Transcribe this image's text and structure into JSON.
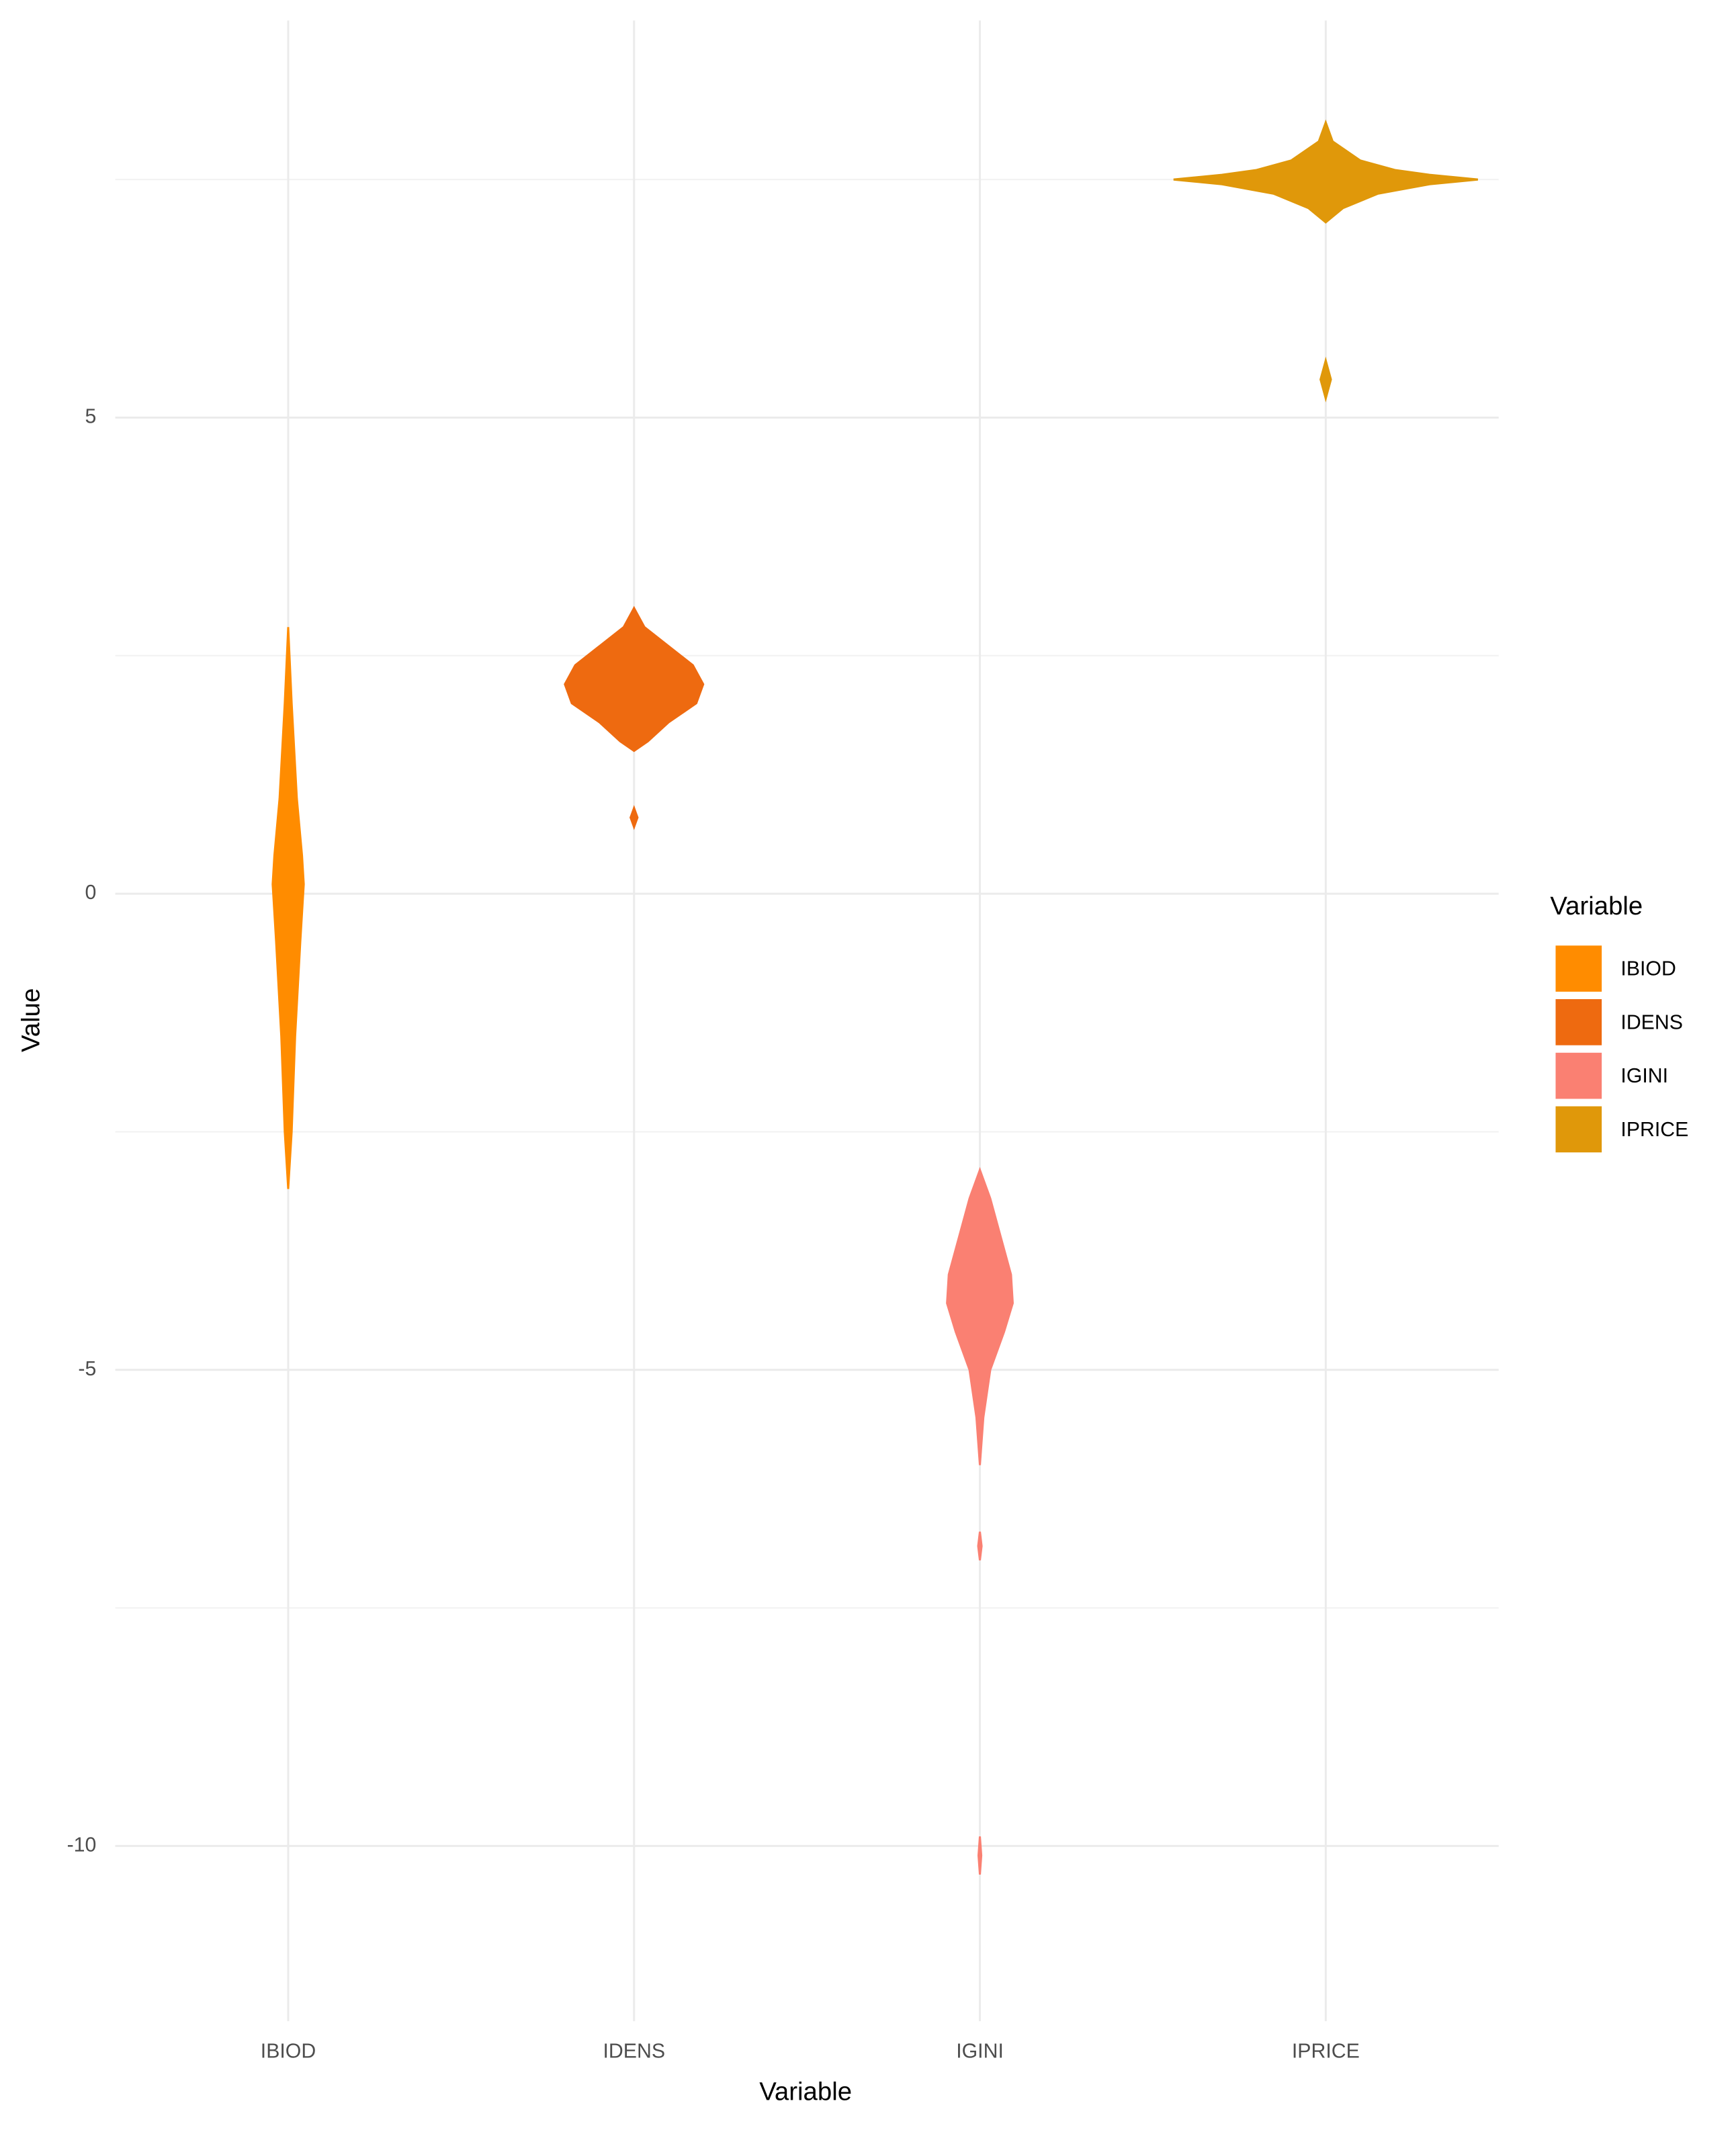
{
  "chart_data": {
    "type": "violin",
    "x_label": "Variable",
    "y_label": "Value",
    "legend_title": "Variable",
    "categories": [
      "IBIOD",
      "IDENS",
      "IGINI",
      "IPRICE"
    ],
    "ylim": [
      -11.84,
      9.17
    ],
    "yticks": [
      -10,
      -5,
      0,
      5
    ],
    "minor_yticks": [
      -7.5,
      -2.5,
      2.5,
      7.5
    ],
    "grid": true,
    "legend": "right",
    "series": [
      {
        "name": "IBIOD",
        "color": "#ff8c00",
        "y": [
          2.8,
          2.0,
          1.0,
          0.4,
          0.1,
          -0.5,
          -1.5,
          -2.5,
          -3.1
        ],
        "width": [
          0,
          0.01,
          0.025,
          0.04,
          0.045,
          0.035,
          0.02,
          0.01,
          0
        ]
      },
      {
        "name": "IDENS",
        "color": "#ee6a10",
        "y": [
          3.0,
          2.8,
          2.6,
          2.4,
          2.2,
          2.0,
          1.8,
          1.6,
          1.5,
          null,
          0.9,
          0.8,
          0.7
        ],
        "width": [
          0,
          0.03,
          0.1,
          0.17,
          0.2,
          0.18,
          0.1,
          0.04,
          0,
          null,
          0,
          0.01,
          0
        ]
      },
      {
        "name": "IGINI",
        "color": "#fa8072",
        "y": [
          -2.9,
          -3.2,
          -3.6,
          -4.0,
          -4.3,
          -4.6,
          -5.0,
          -5.5,
          -6.0,
          null,
          -6.7,
          -6.85,
          -7.0,
          null,
          -9.9,
          -10.1,
          -10.3
        ],
        "width": [
          0,
          0.03,
          0.06,
          0.09,
          0.095,
          0.07,
          0.03,
          0.01,
          0,
          null,
          0,
          0.005,
          0,
          null,
          0,
          0.004,
          0
        ]
      },
      {
        "name": "IPRICE",
        "color": "#e0980a",
        "y": [
          8.1,
          7.9,
          7.7,
          7.6,
          7.55,
          7.5,
          7.45,
          7.35,
          7.2,
          7.05,
          null,
          5.6,
          5.4,
          5.2
        ],
        "width": [
          0,
          0.02,
          0.1,
          0.2,
          0.3,
          0.44,
          0.3,
          0.15,
          0.05,
          0,
          null,
          0,
          0.015,
          0
        ]
      }
    ]
  }
}
